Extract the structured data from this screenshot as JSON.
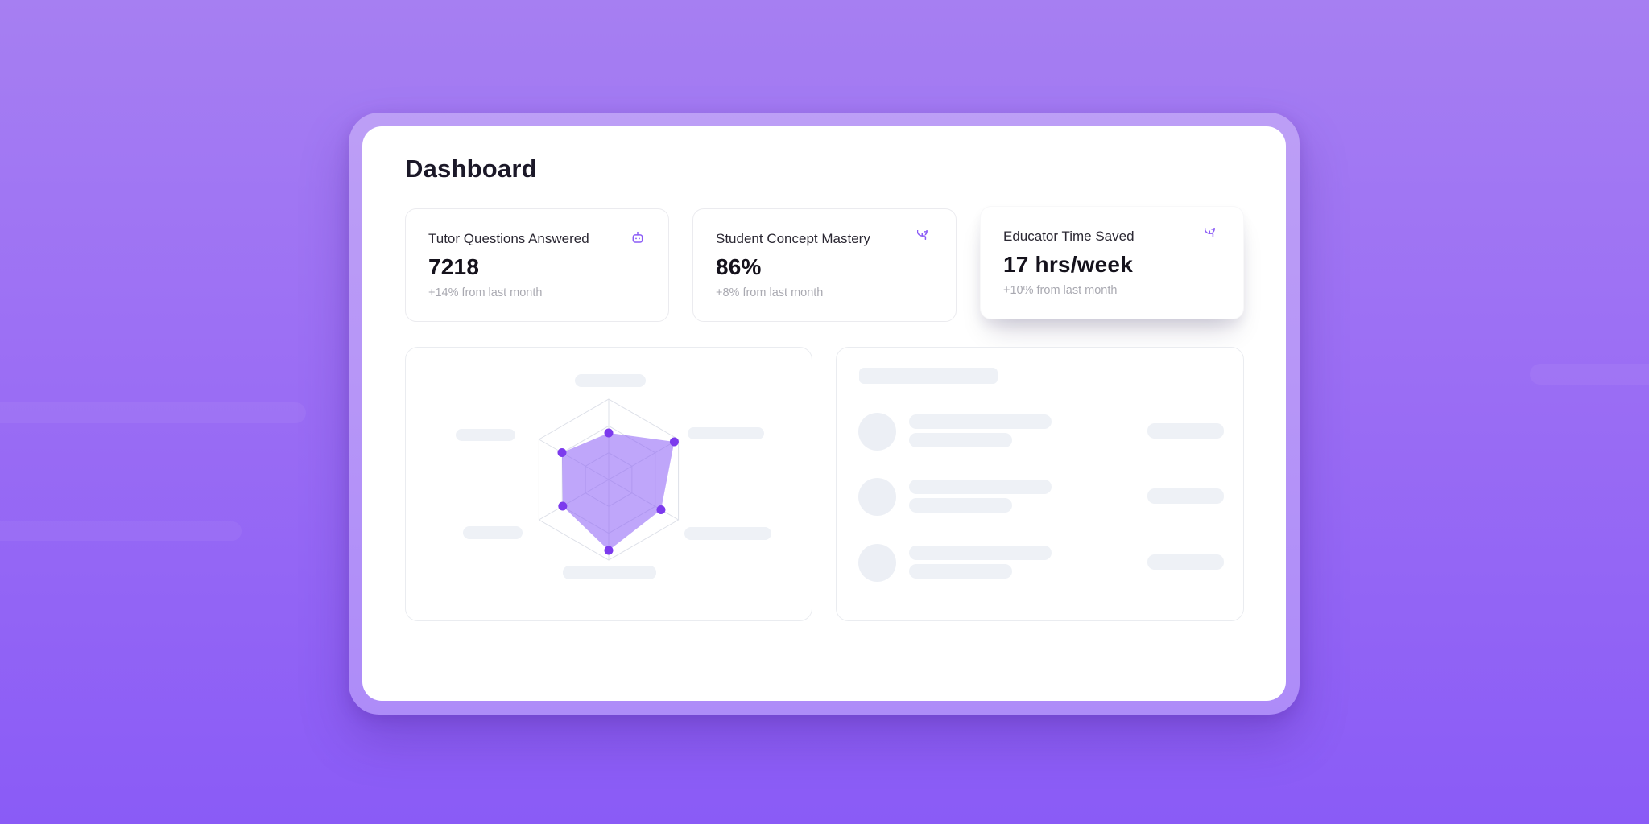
{
  "page": {
    "title": "Dashboard"
  },
  "stats": [
    {
      "label": "Tutor Questions Answered",
      "value": "7218",
      "change": "+14% from last month",
      "icon": "robot-icon"
    },
    {
      "label": "Student Concept Mastery",
      "value": "86%",
      "change": "+8% from last month",
      "icon": "timer-reset-icon"
    },
    {
      "label": "Educator Time Saved",
      "value": "17 hrs/week",
      "change": "+10% from last month",
      "icon": "timer-reset-icon"
    }
  ],
  "chart_data": {
    "type": "radar",
    "title": "",
    "axes": [
      "top",
      "upper-right",
      "lower-right",
      "bottom",
      "lower-left",
      "upper-left"
    ],
    "axis_labels_visible": false,
    "axis_labels_state": "skeleton-placeholder",
    "values": [
      58,
      94,
      75,
      88,
      66,
      67
    ],
    "scale_max": 100,
    "grid_rings": 3,
    "grid_color": "#dde0e8",
    "fill_color": "#8b5cf6",
    "fill_opacity": 0.55,
    "point_color": "#7c3aed",
    "point_radius": 5.5
  },
  "activity_panel": {
    "state": "loading-skeleton",
    "skeleton_rows": 3
  },
  "colors": {
    "accent": "#8b5cf6",
    "background_top": "#a67ff2",
    "background_bottom": "#8a5bf6",
    "card_background": "#ffffff",
    "skeleton": "#eef1f6",
    "title_text": "#1b1828",
    "muted_text": "#a9a9b1"
  }
}
